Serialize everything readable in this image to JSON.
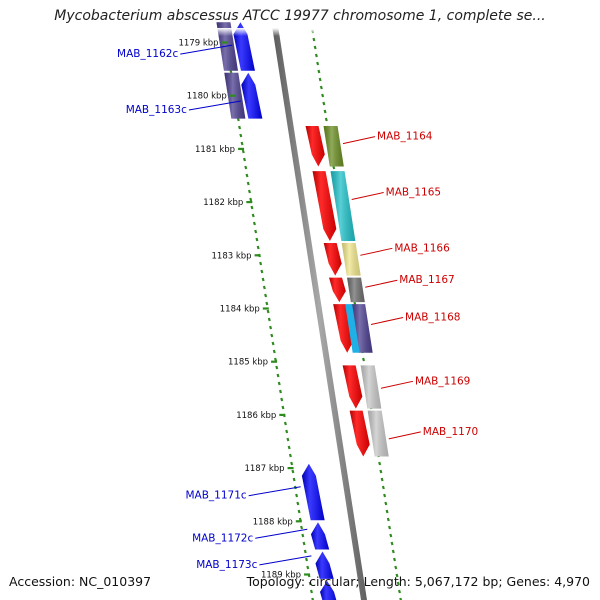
{
  "title": "Mycobacterium abscessus ATCC 19977 chromosome 1, complete se...",
  "footer": {
    "accession": "Accession: NC_010397",
    "summary": "Topology: circular; Length: 5,067,172 bp; Genes: 4,970"
  },
  "ticks": [
    "1179 kbp",
    "1180 kbp",
    "1181 kbp",
    "1182 kbp",
    "1183 kbp",
    "1184 kbp",
    "1185 kbp",
    "1186 kbp",
    "1187 kbp",
    "1188 kbp",
    "1189 kbp"
  ],
  "colors": {
    "reverse_gene": "#1a1aee",
    "forward_gene": "#ee1111",
    "backbone": "#808080",
    "dotted_ring": "#2e8b1e",
    "reverse_label": "#0000cc",
    "forward_label": "#cc0000"
  },
  "genes": [
    {
      "label": "MAB_1162c",
      "strand": "reverse",
      "start_kbp": 1178.6,
      "end_kbp": 1179.55,
      "label_at_kbp": 1179.2,
      "cog_color": "#4b3f8f"
    },
    {
      "label": "MAB_1163c",
      "strand": "reverse",
      "start_kbp": 1179.55,
      "end_kbp": 1180.45,
      "label_at_kbp": 1180.25,
      "cog_color": "#4b3f8f"
    },
    {
      "label": "MAB_1164",
      "strand": "forward",
      "start_kbp": 1180.55,
      "end_kbp": 1181.35,
      "label_at_kbp": 1180.75,
      "cog_color": "#6b8e23"
    },
    {
      "label": "MAB_1165",
      "strand": "forward",
      "start_kbp": 1181.4,
      "end_kbp": 1182.75,
      "label_at_kbp": 1181.8,
      "cog_color": "#20c0c8"
    },
    {
      "label": "MAB_1166",
      "strand": "forward",
      "start_kbp": 1182.75,
      "end_kbp": 1183.4,
      "label_at_kbp": 1182.85,
      "cog_color": "#f0e68c"
    },
    {
      "label": "MAB_1167",
      "strand": "forward",
      "start_kbp": 1183.4,
      "end_kbp": 1183.9,
      "label_at_kbp": 1183.45,
      "cog_color": "#6e6e6e"
    },
    {
      "label": "MAB_1168",
      "strand": "forward",
      "start_kbp": 1183.9,
      "end_kbp": 1184.85,
      "label_at_kbp": 1184.15,
      "cog_color": "#4b3f8f"
    },
    {
      "label": "MAB_1169",
      "strand": "forward",
      "start_kbp": 1185.05,
      "end_kbp": 1185.9,
      "label_at_kbp": 1185.35,
      "cog_color": "#c8c8c8"
    },
    {
      "label": "MAB_1170",
      "strand": "forward",
      "start_kbp": 1185.9,
      "end_kbp": 1186.8,
      "label_at_kbp": 1186.3,
      "cog_color": "#c8c8c8"
    },
    {
      "label": "MAB_1171c",
      "strand": "reverse",
      "start_kbp": 1186.9,
      "end_kbp": 1188.0,
      "label_at_kbp": 1187.5,
      "cog_color": ""
    },
    {
      "label": "MAB_1172c",
      "strand": "reverse",
      "start_kbp": 1188.0,
      "end_kbp": 1188.55,
      "label_at_kbp": 1188.3,
      "cog_color": ""
    },
    {
      "label": "MAB_1173c",
      "strand": "reverse",
      "start_kbp": 1188.55,
      "end_kbp": 1189.1,
      "label_at_kbp": 1188.8,
      "cog_color": ""
    },
    {
      "label": "",
      "strand": "reverse",
      "start_kbp": 1189.1,
      "end_kbp": 1189.6,
      "label_at_kbp": null,
      "cog_color": ""
    }
  ]
}
